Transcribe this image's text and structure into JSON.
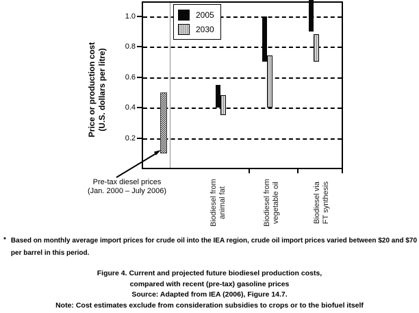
{
  "chart_data": {
    "type": "range-bar",
    "title": "",
    "xlabel": "",
    "ylabel_line1": "Price or production cost",
    "ylabel_line2": "(U.S. dollars per litre)",
    "ylim": [
      0,
      1.1
    ],
    "yticks": [
      1.0,
      0.8,
      0.6,
      0.4,
      0.2
    ],
    "grid": "horizontal dashed",
    "legend_position": "top-left inside plot",
    "categories": [
      {
        "line1": "Biodiesel from",
        "line2": "animal fat"
      },
      {
        "line1": "Biodiesel from",
        "line2": "vegetable oil"
      },
      {
        "line1": "Biodiesel via",
        "line2": "FT synthesis"
      }
    ],
    "series": [
      {
        "name": "2005",
        "color": "#000000",
        "ranges": [
          [
            0.4,
            0.55
          ],
          [
            0.7,
            1.0
          ],
          [
            0.9,
            1.12
          ]
        ],
        "note": "FT synthesis 2005 upper bound extends above the chart top (>1.1, clipped)"
      },
      {
        "name": "2030",
        "color": "#d2d2d2",
        "pattern": "vertical-hatch",
        "ranges": [
          [
            0.35,
            0.48
          ],
          [
            0.4,
            0.74
          ],
          [
            0.7,
            0.88
          ]
        ]
      }
    ],
    "reference_bar": {
      "label_line1": "Pre-tax diesel prices",
      "label_line2": "(Jan. 2000 – July 2006)",
      "range": [
        0.1,
        0.5
      ],
      "pattern": "checkerboard"
    }
  },
  "figure": {
    "footnote_marker": "*",
    "footnote_line1": "Based on monthly average import prices for crude oil into the IEA region, crude oil import prices varied between $20 and $70",
    "footnote_line2": "per barrel in this period.",
    "caption_lines": [
      "Figure 4. Current and projected future biodiesel production costs,",
      "compared with recent (pre-tax) gasoline prices",
      "Source: Adapted from IEA (2006), Figure 14.7.",
      "Note: Cost estimates exclude from consideration subsidies to crops or to the biofuel itself"
    ]
  }
}
